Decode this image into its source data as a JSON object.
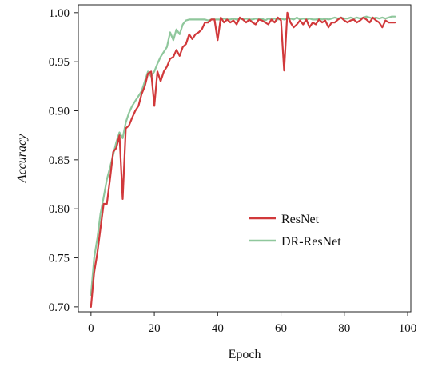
{
  "chart_data": {
    "type": "line",
    "title": "",
    "xlabel": "Epoch",
    "ylabel": "Accuracy",
    "xlim": [
      -4,
      101
    ],
    "ylim": [
      0.695,
      1.008
    ],
    "xticks": [
      0,
      20,
      40,
      60,
      80,
      100
    ],
    "yticks": [
      0.7,
      0.75,
      0.8,
      0.85,
      0.9,
      0.95,
      1.0
    ],
    "grid": false,
    "legend_position": "center-right",
    "series": [
      {
        "name": "ResNet",
        "color": "#d1393b",
        "x": [
          0,
          1,
          2,
          3,
          4,
          5,
          6,
          7,
          8,
          9,
          10,
          11,
          12,
          13,
          14,
          15,
          16,
          17,
          18,
          19,
          20,
          21,
          22,
          23,
          24,
          25,
          26,
          27,
          28,
          29,
          30,
          31,
          32,
          33,
          34,
          35,
          36,
          37,
          38,
          39,
          40,
          41,
          42,
          43,
          44,
          45,
          46,
          47,
          48,
          49,
          50,
          51,
          52,
          53,
          54,
          55,
          56,
          57,
          58,
          59,
          60,
          61,
          62,
          63,
          64,
          65,
          66,
          67,
          68,
          69,
          70,
          71,
          72,
          73,
          74,
          75,
          76,
          77,
          78,
          79,
          80,
          81,
          82,
          83,
          84,
          85,
          86,
          87,
          88,
          89,
          90,
          91,
          92,
          93,
          94,
          95,
          96
        ],
        "y": [
          0.7,
          0.735,
          0.755,
          0.78,
          0.805,
          0.805,
          0.83,
          0.858,
          0.862,
          0.875,
          0.81,
          0.882,
          0.885,
          0.893,
          0.9,
          0.905,
          0.917,
          0.925,
          0.938,
          0.94,
          0.905,
          0.94,
          0.93,
          0.94,
          0.945,
          0.953,
          0.955,
          0.962,
          0.956,
          0.965,
          0.968,
          0.978,
          0.973,
          0.978,
          0.98,
          0.983,
          0.99,
          0.99,
          0.993,
          0.993,
          0.972,
          0.995,
          0.99,
          0.993,
          0.99,
          0.992,
          0.988,
          0.995,
          0.993,
          0.99,
          0.993,
          0.99,
          0.988,
          0.993,
          0.992,
          0.99,
          0.988,
          0.993,
          0.99,
          0.995,
          0.992,
          0.941,
          1.0,
          0.99,
          0.985,
          0.988,
          0.992,
          0.988,
          0.993,
          0.985,
          0.99,
          0.988,
          0.993,
          0.99,
          0.992,
          0.985,
          0.99,
          0.99,
          0.993,
          0.995,
          0.992,
          0.99,
          0.992,
          0.993,
          0.99,
          0.992,
          0.995,
          0.993,
          0.99,
          0.995,
          0.992,
          0.99,
          0.985,
          0.992,
          0.99,
          0.99,
          0.99
        ]
      },
      {
        "name": "DR-ResNet",
        "color": "#8fc79c",
        "x": [
          0,
          1,
          2,
          3,
          4,
          5,
          6,
          7,
          8,
          9,
          10,
          11,
          12,
          13,
          14,
          15,
          16,
          17,
          18,
          19,
          20,
          21,
          22,
          23,
          24,
          25,
          26,
          27,
          28,
          29,
          30,
          31,
          32,
          33,
          34,
          35,
          36,
          37,
          38,
          39,
          40,
          41,
          42,
          43,
          44,
          45,
          46,
          47,
          48,
          49,
          50,
          51,
          52,
          53,
          54,
          55,
          56,
          57,
          58,
          59,
          60,
          61,
          62,
          63,
          64,
          65,
          66,
          67,
          68,
          69,
          70,
          71,
          72,
          73,
          74,
          75,
          76,
          77,
          78,
          79,
          80,
          81,
          82,
          83,
          84,
          85,
          86,
          87,
          88,
          89,
          90,
          91,
          92,
          93,
          94,
          95,
          96
        ],
        "y": [
          0.712,
          0.75,
          0.77,
          0.795,
          0.812,
          0.83,
          0.842,
          0.855,
          0.868,
          0.878,
          0.872,
          0.888,
          0.898,
          0.905,
          0.91,
          0.915,
          0.92,
          0.93,
          0.94,
          0.935,
          0.94,
          0.948,
          0.955,
          0.96,
          0.965,
          0.98,
          0.972,
          0.983,
          0.978,
          0.988,
          0.992,
          0.993,
          0.993,
          0.993,
          0.993,
          0.993,
          0.993,
          0.992,
          0.993,
          0.993,
          0.993,
          0.993,
          0.994,
          0.993,
          0.993,
          0.994,
          0.993,
          0.994,
          0.993,
          0.994,
          0.993,
          0.993,
          0.994,
          0.993,
          0.994,
          0.992,
          0.994,
          0.993,
          0.994,
          0.993,
          0.994,
          0.993,
          0.994,
          0.994,
          0.993,
          0.995,
          0.993,
          0.994,
          0.993,
          0.994,
          0.993,
          0.993,
          0.994,
          0.993,
          0.994,
          0.993,
          0.994,
          0.995,
          0.994,
          0.995,
          0.994,
          0.994,
          0.995,
          0.994,
          0.995,
          0.994,
          0.995,
          0.996,
          0.995,
          0.994,
          0.995,
          0.994,
          0.995,
          0.994,
          0.995,
          0.996,
          0.996
        ]
      }
    ]
  }
}
